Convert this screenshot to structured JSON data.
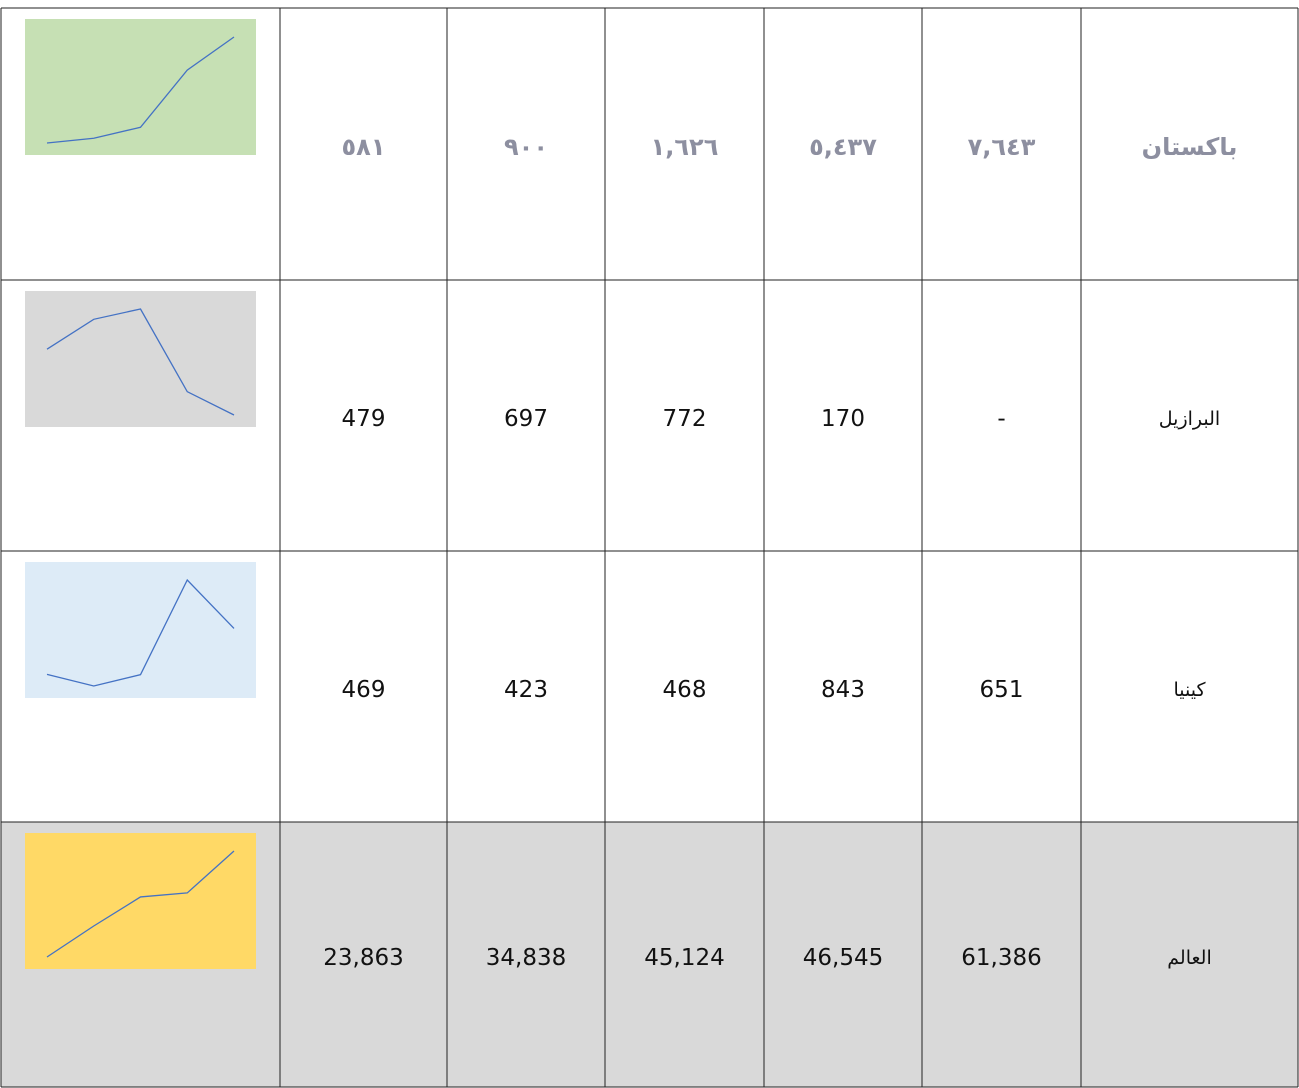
{
  "table": {
    "rows": [
      {
        "name": "باكستان",
        "cells": [
          {
            "value": 581,
            "label": "٥٨١"
          },
          {
            "value": 900,
            "label": "٩٠٠"
          },
          {
            "value": 1626,
            "label": "١,٦٢٦"
          },
          {
            "value": 5437,
            "label": "٥,٤٣٧"
          },
          {
            "value": 7643,
            "label": "٧,٦٤٣"
          }
        ],
        "sparkline": {
          "background": "#c6e0b4",
          "line": "#4472c4"
        }
      },
      {
        "name": "البرازيل",
        "cells": [
          {
            "value": 479,
            "label": "479"
          },
          {
            "value": 697,
            "label": "697"
          },
          {
            "value": 772,
            "label": "772"
          },
          {
            "value": 170,
            "label": "170"
          },
          {
            "value": 0,
            "label": "-"
          }
        ],
        "sparkline": {
          "background": "#d9d9d9",
          "line": "#4472c4"
        }
      },
      {
        "name": "كينيا",
        "cells": [
          {
            "value": 469,
            "label": "469"
          },
          {
            "value": 423,
            "label": "423"
          },
          {
            "value": 468,
            "label": "468"
          },
          {
            "value": 843,
            "label": "843"
          },
          {
            "value": 651,
            "label": "651"
          }
        ],
        "sparkline": {
          "background": "#ddebf7",
          "line": "#4472c4"
        }
      },
      {
        "name": "العالم",
        "cells": [
          {
            "value": 23863,
            "label": "23,863"
          },
          {
            "value": 34838,
            "label": "34,838"
          },
          {
            "value": 45124,
            "label": "45,124"
          },
          {
            "value": 46545,
            "label": "46,545"
          },
          {
            "value": 61386,
            "label": "61,386"
          }
        ],
        "sparkline": {
          "background": "#ffd966",
          "line": "#4472c4"
        }
      }
    ]
  }
}
